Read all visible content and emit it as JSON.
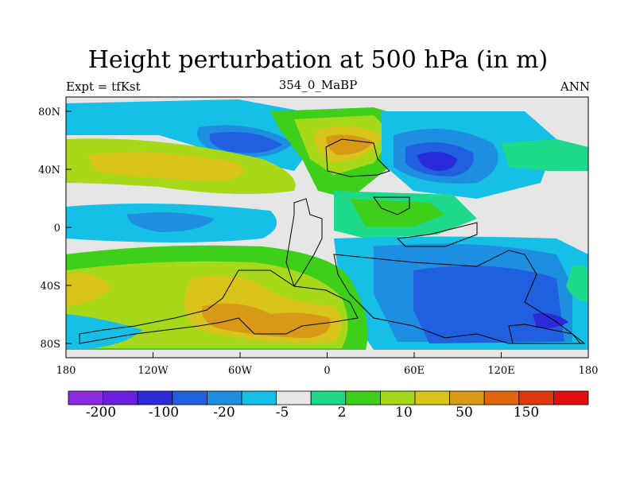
{
  "title": "Height perturbation at 500 hPa (in m)",
  "subtitle_left": "Expt = tfKst",
  "subtitle_center": "354_0_MaBP",
  "subtitle_right": "ANN",
  "axes": {
    "x_ticks": [
      "180",
      "120W",
      "60W",
      "0",
      "60E",
      "120E",
      "180"
    ],
    "y_ticks": [
      "80N",
      "40N",
      "0",
      "40S",
      "80S"
    ]
  },
  "colorbar": {
    "labels": [
      "-200",
      "-100",
      "-20",
      "-5",
      "2",
      "10",
      "50",
      "150"
    ],
    "colors": [
      "#8a2be2",
      "#6a1fe0",
      "#2a2ad8",
      "#1f5fe0",
      "#1e8fe0",
      "#15bfe6",
      "#e6e6e6",
      "#1fd98a",
      "#3ecf1a",
      "#a8d81a",
      "#d8c41a",
      "#d89a16",
      "#e0660e",
      "#e0380c",
      "#e10f0f"
    ]
  },
  "colors": {
    "background": "#e6e6e6",
    "coastline": "#000000"
  }
}
